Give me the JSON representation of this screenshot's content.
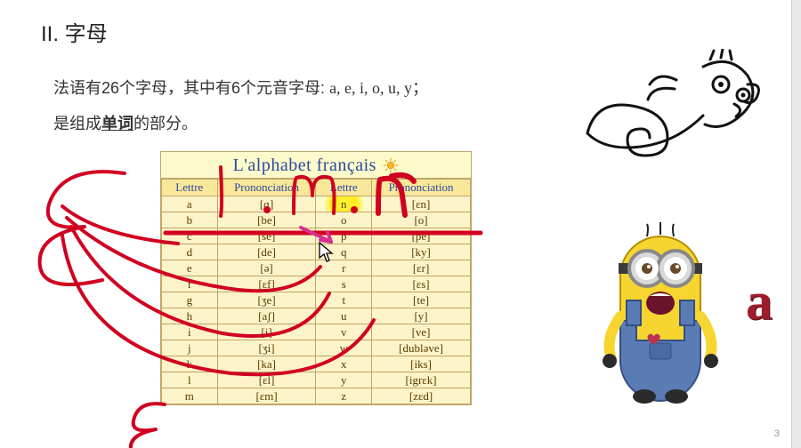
{
  "heading": "II.  字母",
  "body_line1_a": "法语有",
  "body_line1_b": "个字母，其中有",
  "body_line1_c": "个元音字母: ",
  "count_letters": "26",
  "count_vowels": "6",
  "vowels_list": "a, e, i, o, u, y；",
  "body_line2_a": "是组成",
  "body_line2_word": "单词",
  "body_line2_b": "的部分。",
  "table_title": "L'alphabet français",
  "table_headers": [
    "Lettre",
    "Prononciation",
    "Lettre",
    "Prononciation"
  ],
  "alphabet_rows": [
    {
      "l1": "a",
      "p1": "[ɑ]",
      "l2": "n",
      "p2": "[ɛn]"
    },
    {
      "l1": "b",
      "p1": "[be]",
      "l2": "o",
      "p2": "[o]"
    },
    {
      "l1": "c",
      "p1": "[se]",
      "l2": "p",
      "p2": "[pe]"
    },
    {
      "l1": "d",
      "p1": "[de]",
      "l2": "q",
      "p2": "[ky]"
    },
    {
      "l1": "e",
      "p1": "[ə]",
      "l2": "r",
      "p2": "[ɛr]"
    },
    {
      "l1": "f",
      "p1": "[ɛf]",
      "l2": "s",
      "p2": "[ɛs]"
    },
    {
      "l1": "g",
      "p1": "[ʒe]",
      "l2": "t",
      "p2": "[te]"
    },
    {
      "l1": "h",
      "p1": "[aʃ]",
      "l2": "u",
      "p2": "[y]"
    },
    {
      "l1": "i",
      "p1": "[i]",
      "l2": "v",
      "p2": "[ve]"
    },
    {
      "l1": "j",
      "p1": "[ʒi]",
      "l2": "w",
      "p2": "[dubləve]"
    },
    {
      "l1": "k",
      "p1": "[ka]",
      "l2": "x",
      "p2": "[iks]"
    },
    {
      "l1": "l",
      "p1": "[ɛl]",
      "l2": "y",
      "p2": "[igrɛk]"
    },
    {
      "l1": "m",
      "p1": "[ɛm]",
      "l2": "z",
      "p2": "[zɛd]"
    }
  ],
  "annotation_color": "#d10020",
  "annotation_magenta": "#d8308f",
  "highlight_color": "#fff23a",
  "table_bg": "#fdf3c8",
  "table_border": "#bfa66a",
  "big_letter": "a",
  "page_number": "3",
  "annotation_letters_label": "E . l . m . n"
}
